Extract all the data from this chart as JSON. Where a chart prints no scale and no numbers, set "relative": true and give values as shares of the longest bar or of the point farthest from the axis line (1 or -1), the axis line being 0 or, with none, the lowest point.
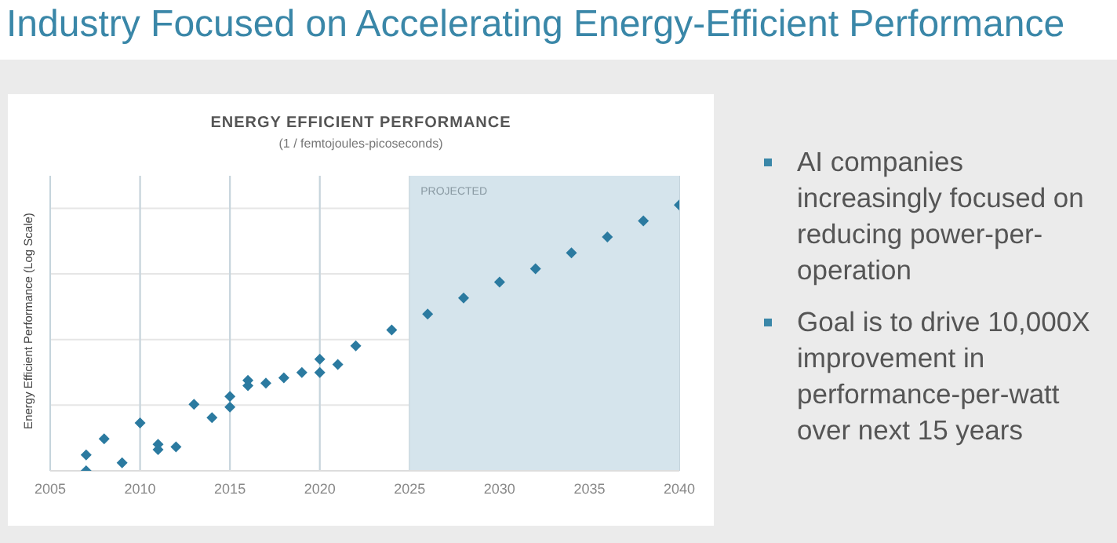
{
  "chart_data": {
    "type": "scatter",
    "title": "ENERGY EFFICIENT PERFORMANCE",
    "subtitle": "(1 / femtojoules-picoseconds)",
    "ylabel": "Energy Efficient Performance (Log Scale)",
    "annotations": [
      "Industry Focused on Accelerating Energy-Efficient Performance",
      "AI companies increasingly focused on reducing power-per-operation",
      "Goal is to drive 10,000X improvement in performance-per-watt over next 15 years"
    ],
    "relative": true,
    "x": [
      2007,
      2007,
      2008,
      2009,
      2010,
      2011,
      2011,
      2012,
      2013,
      2014,
      2015,
      2015,
      2016,
      2016,
      2017,
      2018,
      2019,
      2020,
      2020,
      2021,
      2022,
      2024,
      2026,
      2028,
      2030,
      2032,
      2034,
      2036,
      2038,
      2040
    ],
    "series": [
      {
        "color": "#2b7aa0",
        "values": [
          0.06,
          0,
          0.12,
          0.03,
          0.18,
          0.1,
          0.08,
          0.09,
          0.25,
          0.2,
          0.28,
          0.24,
          0.34,
          0.32,
          0.33,
          0.35,
          0.37,
          0.42,
          0.37,
          0.4,
          0.47,
          0.53,
          0.59,
          0.65,
          0.71,
          0.76,
          0.82,
          0.88,
          0.94,
          1
        ]
      }
    ],
    "xlim": [
      2005,
      2040
    ],
    "xticks": [
      2005,
      2010,
      2015,
      2020,
      2025,
      2030,
      2035,
      2040
    ],
    "bands": [
      {
        "axis": "x",
        "from": 2025,
        "to": 2040,
        "label": "PROJECTED",
        "color": "#d5e4ec"
      }
    ],
    "grid": true,
    "marker": "diamond"
  }
}
